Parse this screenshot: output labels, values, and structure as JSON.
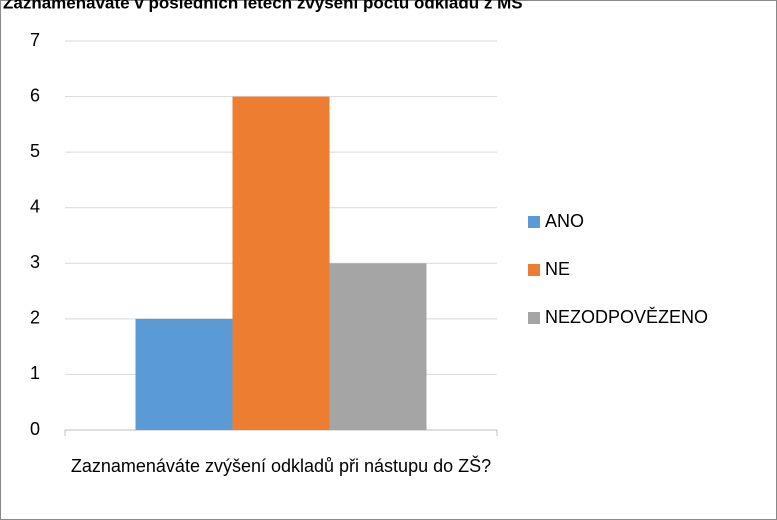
{
  "chart_data": {
    "type": "bar",
    "title": "Zaznamenáváte v posledních letech zvýšení počtu odkladů z MŠ",
    "categories": [
      "Zaznamenáváte zvýšení odkladů při nástupu do ZŠ?"
    ],
    "series": [
      {
        "name": "ANO",
        "color": "#5b9bd5",
        "values": [
          2
        ]
      },
      {
        "name": "NE",
        "color": "#ed7d31",
        "values": [
          6
        ]
      },
      {
        "name": "NEZODPOVĚZENO",
        "color": "#a5a5a5",
        "values": [
          3
        ]
      }
    ],
    "ylim": [
      0,
      7
    ],
    "yticks": [
      0,
      1,
      2,
      3,
      4,
      5,
      6,
      7
    ],
    "grid": true,
    "legend": "right"
  }
}
